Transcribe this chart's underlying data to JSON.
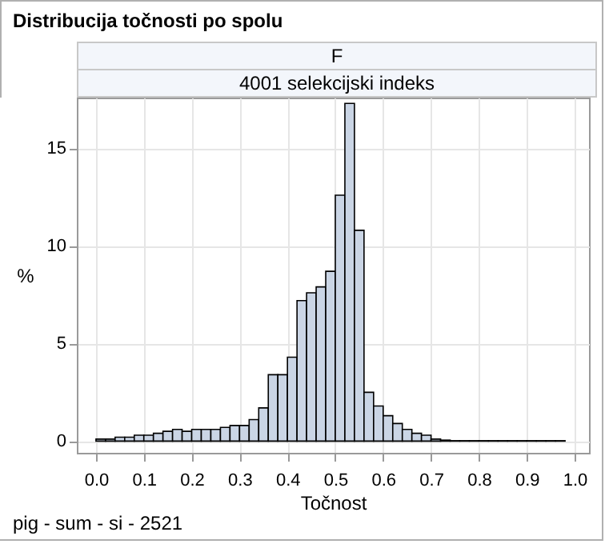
{
  "chart_data": {
    "type": "histogram",
    "title": "Distribucija točnosti po spolu",
    "annotations": [
      "F",
      "4001 selekcijski indeks",
      "pig - sum - si - 2521"
    ],
    "xlabel": "Točnost",
    "ylabel": "%",
    "bins": [
      0,
      0.02,
      0.04,
      0.06,
      0.08,
      0.1,
      0.12,
      0.14,
      0.16,
      0.18,
      0.2,
      0.22,
      0.24,
      0.26,
      0.28,
      0.3,
      0.32,
      0.34,
      0.36,
      0.38,
      0.4,
      0.42,
      0.44,
      0.46,
      0.48,
      0.5,
      0.52,
      0.54,
      0.56,
      0.58,
      0.6,
      0.62,
      0.64,
      0.66,
      0.68,
      0.7,
      0.72,
      0.74,
      0.76,
      0.78,
      0.8,
      0.82,
      0.84,
      0.86,
      0.88,
      0.9,
      0.92,
      0.94,
      0.96,
      0.98
    ],
    "values": [
      0.1,
      0.1,
      0.2,
      0.2,
      0.3,
      0.3,
      0.4,
      0.5,
      0.6,
      0.5,
      0.6,
      0.6,
      0.6,
      0.7,
      0.8,
      0.8,
      1.1,
      1.7,
      3.4,
      3.4,
      4.3,
      7.2,
      7.6,
      7.9,
      8.7,
      12.6,
      17.3,
      10.8,
      2.5,
      1.8,
      1.3,
      0.9,
      0.6,
      0.4,
      0.3,
      0.1,
      0.05,
      0.02,
      0.02,
      0.02,
      0.02,
      0.02,
      0.02,
      0.02,
      0.02,
      0.02,
      0.02,
      0.02,
      0.02
    ],
    "color": "#cad5e5",
    "xlim": [
      -0.04,
      1.03
    ],
    "ylim": [
      -0.6,
      17.6
    ],
    "xticks": [
      {
        "value": 0,
        "label": "0.0"
      },
      0.1,
      0.2,
      0.3,
      0.4,
      0.5,
      0.6,
      0.7,
      0.8,
      0.9,
      {
        "value": 1,
        "label": "1.0"
      }
    ],
    "yticks": [
      0,
      5,
      10,
      15
    ],
    "grid": true
  }
}
